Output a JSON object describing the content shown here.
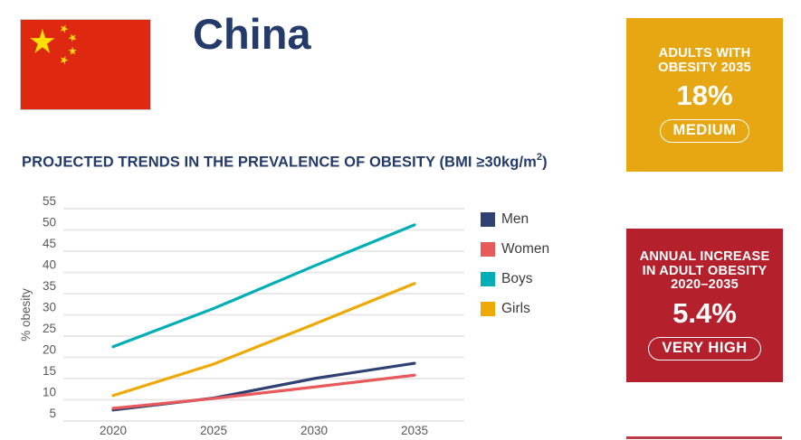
{
  "colors": {
    "navy": "#243A6B",
    "gold": "#E6A713",
    "box_red": "#B4212D",
    "divider_red": "#BE3A45",
    "flag_red": "#DE2910",
    "flag_yellow": "#FFDE00",
    "grid": "#E8E8E8",
    "axis_text": "#595959",
    "legend_text": "#3C3C3C"
  },
  "header": {
    "country": "China"
  },
  "adults_box": {
    "label_line1": "ADULTS WITH",
    "label_line2": "OBESITY 2035",
    "value": "18%",
    "badge": "MEDIUM"
  },
  "increase_box": {
    "label_line1": "ANNUAL INCREASE",
    "label_line2": "IN ADULT OBESITY",
    "label_line3": "2020–2035",
    "value": "5.4%",
    "badge": "VERY HIGH"
  },
  "chart_section": {
    "title_prefix": "PROJECTED TRENDS IN THE PREVALENCE OF OBESITY (BMI ≥30kg/m",
    "title_sup": "2",
    "title_suffix": ")"
  },
  "chart_data": {
    "type": "line",
    "title": "Projected trends in the prevalence of obesity (BMI ≥30kg/m2)",
    "x": [
      2020,
      2025,
      2030,
      2035
    ],
    "categories": [
      "2020",
      "2025",
      "2030",
      "2035"
    ],
    "series": [
      {
        "name": "Men",
        "color": "#2E4172",
        "values": [
          7.6,
          10.4,
          15.0,
          18.6
        ]
      },
      {
        "name": "Women",
        "color": "#E8595C",
        "values": [
          8.0,
          10.3,
          13.0,
          15.8
        ]
      },
      {
        "name": "Boys",
        "color": "#00AEB5",
        "values": [
          22.5,
          31.5,
          41.5,
          51.2
        ]
      },
      {
        "name": "Girls",
        "color": "#EEA904",
        "values": [
          11.0,
          18.4,
          27.8,
          37.4
        ]
      }
    ],
    "xlabel": "",
    "ylabel": "% obesity",
    "ylim": [
      5,
      55
    ],
    "ytick_step": 5,
    "grid": true,
    "legend_position": "right"
  }
}
